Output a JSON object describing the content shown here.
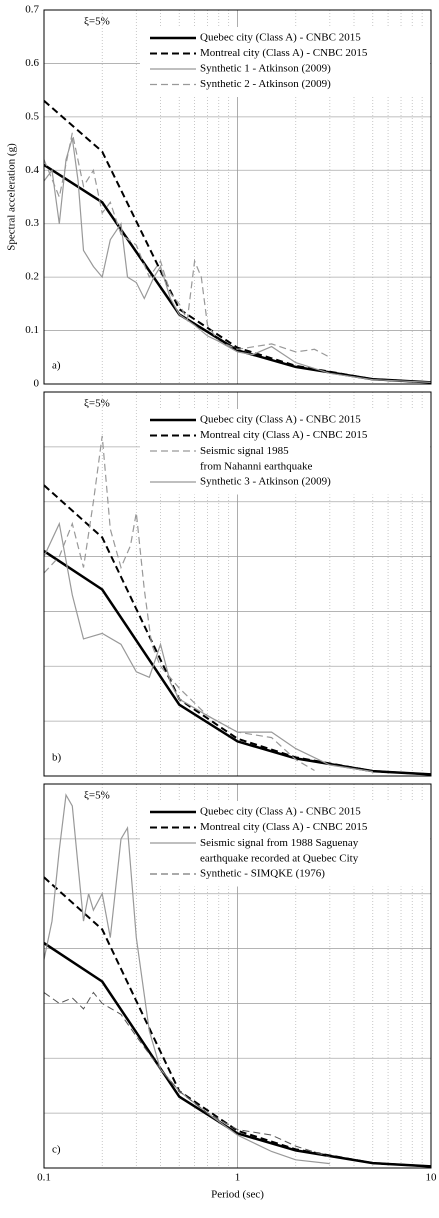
{
  "chart_data": [
    {
      "type": "line",
      "ylabel": "Spectral acceleration (g)",
      "xscale": "log",
      "xlim": [
        0.1,
        10
      ],
      "xticks": [
        0.1,
        1,
        10
      ],
      "show_xtick_labels": false,
      "ylim": [
        0,
        0.7
      ],
      "yticks": [
        0,
        0.1,
        0.2,
        0.3,
        0.4,
        0.5,
        0.6,
        0.7
      ],
      "show_ytick_labels": true,
      "grid": true,
      "legend": "top-right",
      "annotations": [
        "ξ=5%",
        "a)"
      ],
      "series": [
        {
          "name": "Quebec city (Class A) - CNBC 2015",
          "color": "#000000",
          "style": "solid",
          "width": 2.5,
          "x": [
            0.1,
            0.2,
            0.5,
            1,
            2,
            5,
            10
          ],
          "values": [
            0.41,
            0.34,
            0.13,
            0.063,
            0.032,
            0.009,
            0.003
          ]
        },
        {
          "name": "Montreal city (Class A) - CNBC 2015",
          "color": "#000000",
          "style": "dashed",
          "width": 2,
          "x": [
            0.1,
            0.2,
            0.5,
            1,
            2,
            5,
            10
          ],
          "values": [
            0.53,
            0.435,
            0.14,
            0.068,
            0.034,
            0.009,
            0.003
          ]
        },
        {
          "name": "Synthetic 1 - Atkinson (2009)",
          "color": "#999999",
          "style": "solid",
          "width": 1.2,
          "x": [
            0.1,
            0.11,
            0.12,
            0.13,
            0.14,
            0.15,
            0.16,
            0.18,
            0.2,
            0.22,
            0.25,
            0.27,
            0.3,
            0.33,
            0.37,
            0.4,
            0.45,
            0.5,
            0.6,
            0.7,
            0.8,
            1,
            1.2,
            1.5,
            2,
            3,
            5,
            10
          ],
          "values": [
            0.38,
            0.4,
            0.3,
            0.42,
            0.46,
            0.38,
            0.25,
            0.22,
            0.2,
            0.27,
            0.3,
            0.2,
            0.19,
            0.16,
            0.2,
            0.22,
            0.16,
            0.13,
            0.11,
            0.09,
            0.08,
            0.06,
            0.055,
            0.07,
            0.04,
            0.02,
            0.008,
            0.003
          ]
        },
        {
          "name": "Synthetic 2 - Atkinson (2009)",
          "color": "#999999",
          "style": "dashed",
          "width": 1.2,
          "x": [
            0.1,
            0.12,
            0.14,
            0.16,
            0.18,
            0.2,
            0.22,
            0.25,
            0.3,
            0.35,
            0.4,
            0.45,
            0.5,
            0.55,
            0.6,
            0.65,
            0.7,
            0.8,
            1,
            1.5,
            2,
            2.5,
            3
          ],
          "values": [
            0.42,
            0.35,
            0.47,
            0.37,
            0.4,
            0.32,
            0.34,
            0.28,
            0.26,
            0.2,
            0.23,
            0.17,
            0.15,
            0.12,
            0.23,
            0.2,
            0.11,
            0.08,
            0.065,
            0.075,
            0.06,
            0.065,
            0.05
          ]
        }
      ]
    },
    {
      "type": "line",
      "xscale": "log",
      "xlim": [
        0.1,
        10
      ],
      "xticks": [
        0.1,
        1,
        10
      ],
      "show_xtick_labels": false,
      "ylim": [
        0,
        0.7
      ],
      "yticks": [
        0,
        0.1,
        0.2,
        0.3,
        0.4,
        0.5,
        0.6,
        0.7
      ],
      "show_ytick_labels": false,
      "grid": true,
      "legend": "top-right",
      "annotations": [
        "ξ=5%",
        "b)"
      ],
      "series": [
        {
          "name": "Quebec city (Class A) - CNBC 2015",
          "color": "#000000",
          "style": "solid",
          "width": 2.5,
          "x": [
            0.1,
            0.2,
            0.5,
            1,
            2,
            5,
            10
          ],
          "values": [
            0.41,
            0.34,
            0.13,
            0.063,
            0.032,
            0.009,
            0.003
          ]
        },
        {
          "name": "Montreal city (Class A) - CNBC 2015",
          "color": "#000000",
          "style": "dashed",
          "width": 2,
          "x": [
            0.1,
            0.2,
            0.5,
            1,
            2,
            5,
            10
          ],
          "values": [
            0.53,
            0.435,
            0.14,
            0.068,
            0.034,
            0.009,
            0.003
          ]
        },
        {
          "name": "Seismic signal 1985\nfrom Nahanni earthquake",
          "color": "#999999",
          "style": "dashed",
          "width": 1.2,
          "x": [
            0.1,
            0.12,
            0.14,
            0.16,
            0.18,
            0.2,
            0.22,
            0.25,
            0.28,
            0.3,
            0.33,
            0.36,
            0.4,
            0.5,
            0.7,
            1,
            1.5,
            2,
            2.5
          ],
          "values": [
            0.37,
            0.4,
            0.46,
            0.38,
            0.5,
            0.62,
            0.45,
            0.38,
            0.42,
            0.48,
            0.34,
            0.24,
            0.2,
            0.16,
            0.11,
            0.08,
            0.07,
            0.03,
            0.01
          ]
        },
        {
          "name": "Synthetic 3 - Atkinson (2009)",
          "color": "#999999",
          "style": "solid",
          "width": 1.2,
          "x": [
            0.1,
            0.12,
            0.14,
            0.16,
            0.2,
            0.25,
            0.3,
            0.35,
            0.4,
            0.45,
            0.5,
            0.7,
            1,
            1.5,
            2,
            3,
            5
          ],
          "values": [
            0.4,
            0.46,
            0.33,
            0.25,
            0.26,
            0.24,
            0.19,
            0.18,
            0.24,
            0.17,
            0.14,
            0.11,
            0.08,
            0.08,
            0.05,
            0.02,
            0.008
          ]
        }
      ]
    },
    {
      "type": "line",
      "xlabel": "Period (sec)",
      "xscale": "log",
      "xlim": [
        0.1,
        10
      ],
      "xticks": [
        0.1,
        1,
        10
      ],
      "show_xtick_labels": true,
      "ylim": [
        0,
        0.7
      ],
      "yticks": [
        0,
        0.1,
        0.2,
        0.3,
        0.4,
        0.5,
        0.6,
        0.7
      ],
      "show_ytick_labels": false,
      "grid": true,
      "legend": "top-right",
      "annotations": [
        "ξ=5%",
        "c)"
      ],
      "series": [
        {
          "name": "Quebec city (Class A) - CNBC 2015",
          "color": "#000000",
          "style": "solid",
          "width": 2.5,
          "x": [
            0.1,
            0.2,
            0.5,
            1,
            2,
            5,
            10
          ],
          "values": [
            0.41,
            0.34,
            0.13,
            0.063,
            0.032,
            0.009,
            0.003
          ]
        },
        {
          "name": "Montreal city (Class A) - CNBC 2015",
          "color": "#000000",
          "style": "dashed",
          "width": 2,
          "x": [
            0.1,
            0.2,
            0.5,
            1,
            2,
            5,
            10
          ],
          "values": [
            0.53,
            0.435,
            0.14,
            0.068,
            0.034,
            0.009,
            0.003
          ]
        },
        {
          "name": "Seismic signal from 1988 Saguenay\nearthquake recorded at Quebec City",
          "color": "#999999",
          "style": "solid",
          "width": 1.2,
          "x": [
            0.1,
            0.11,
            0.12,
            0.13,
            0.14,
            0.15,
            0.16,
            0.17,
            0.18,
            0.2,
            0.22,
            0.25,
            0.27,
            0.3,
            0.35,
            0.4,
            0.5,
            0.7,
            1,
            1.5,
            2,
            3
          ],
          "values": [
            0.38,
            0.45,
            0.58,
            0.68,
            0.66,
            0.55,
            0.45,
            0.5,
            0.47,
            0.5,
            0.42,
            0.6,
            0.62,
            0.42,
            0.25,
            0.18,
            0.14,
            0.1,
            0.06,
            0.03,
            0.015,
            0.008
          ]
        },
        {
          "name": "Synthetic - SIMQKE (1976)",
          "color": "#555555",
          "style": "dashed",
          "width": 1,
          "x": [
            0.1,
            0.12,
            0.14,
            0.16,
            0.18,
            0.2,
            0.25,
            0.3,
            0.4,
            0.5,
            0.7,
            1,
            1.5,
            2,
            3
          ],
          "values": [
            0.32,
            0.3,
            0.31,
            0.29,
            0.32,
            0.3,
            0.28,
            0.24,
            0.18,
            0.14,
            0.1,
            0.07,
            0.06,
            0.04,
            0.02
          ]
        }
      ]
    }
  ]
}
